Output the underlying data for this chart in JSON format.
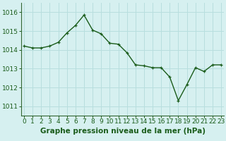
{
  "x": [
    0,
    1,
    2,
    3,
    4,
    5,
    6,
    7,
    8,
    9,
    10,
    11,
    12,
    13,
    14,
    15,
    16,
    17,
    18,
    19,
    20,
    21,
    22,
    23
  ],
  "y": [
    1014.2,
    1014.1,
    1014.1,
    1014.2,
    1014.4,
    1014.9,
    1015.3,
    1015.85,
    1015.05,
    1014.85,
    1014.35,
    1014.3,
    1013.85,
    1013.2,
    1013.15,
    1013.05,
    1013.05,
    1012.55,
    1011.3,
    1012.15,
    1013.05,
    1012.85,
    1013.2,
    1013.2
  ],
  "line_color": "#1a5c1a",
  "marker_color": "#1a5c1a",
  "bg_color": "#d6f0f0",
  "grid_color": "#b8dede",
  "ylabel_ticks": [
    1011,
    1012,
    1013,
    1014,
    1015,
    1016
  ],
  "xlim": [
    -0.3,
    23.3
  ],
  "ylim": [
    1010.5,
    1016.5
  ],
  "xlabel": "Graphe pression niveau de la mer (hPa)",
  "xlabel_fontsize": 7.5,
  "tick_fontsize": 6.5,
  "line_width": 1.0,
  "marker_size": 3.5
}
